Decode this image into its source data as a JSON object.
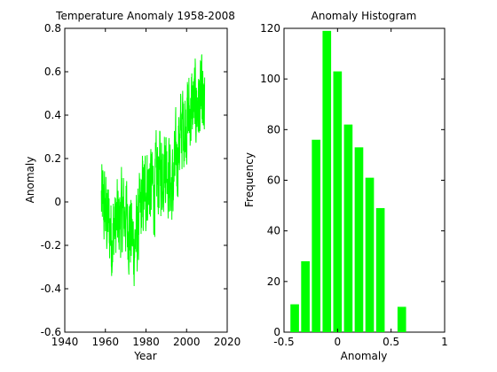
{
  "colors": {
    "series": "#00ff00",
    "background": "#ffffff",
    "axes": "#000000"
  },
  "chart_data": [
    {
      "type": "line",
      "title": "Temperature Anomaly 1958-2008",
      "xlabel": "Year",
      "ylabel": "Anomaly",
      "xlim": [
        1940,
        2020
      ],
      "ylim": [
        -0.6,
        0.8
      ],
      "xticks": [
        1940,
        1960,
        1980,
        2000,
        2020
      ],
      "yticks": [
        -0.6,
        -0.4,
        -0.2,
        0,
        0.2,
        0.4,
        0.6,
        0.8
      ],
      "x_range": [
        1958,
        2008.9
      ],
      "trend_anchors": {
        "x": [
          1958,
          1960,
          1963,
          1966,
          1970,
          1974,
          1976,
          1978,
          1981,
          1984,
          1987,
          1990,
          1993,
          1995,
          1998,
          2001,
          2004,
          2007,
          2009
        ],
        "y": [
          0.0,
          -0.05,
          -0.15,
          -0.1,
          -0.05,
          -0.2,
          -0.15,
          0.0,
          0.1,
          0.05,
          0.15,
          0.2,
          0.05,
          0.2,
          0.35,
          0.4,
          0.45,
          0.45,
          0.4
        ]
      },
      "noise_amplitude": 0.17,
      "grid": false
    },
    {
      "type": "bar",
      "title": "Anomaly Histogram",
      "xlabel": "Anomaly",
      "ylabel": "Frequency",
      "x": [
        -0.4,
        -0.3,
        -0.2,
        -0.1,
        0.0,
        0.1,
        0.2,
        0.3,
        0.4,
        0.5,
        0.6
      ],
      "values": [
        11,
        28,
        76,
        119,
        103,
        82,
        73,
        61,
        49,
        0,
        10
      ],
      "bar_width": 0.08,
      "xlim": [
        -0.5,
        1.0
      ],
      "ylim": [
        0,
        120
      ],
      "xticks": [
        -0.5,
        0,
        0.5,
        1
      ],
      "yticks": [
        0,
        20,
        40,
        60,
        80,
        100,
        120
      ],
      "grid": false
    }
  ]
}
